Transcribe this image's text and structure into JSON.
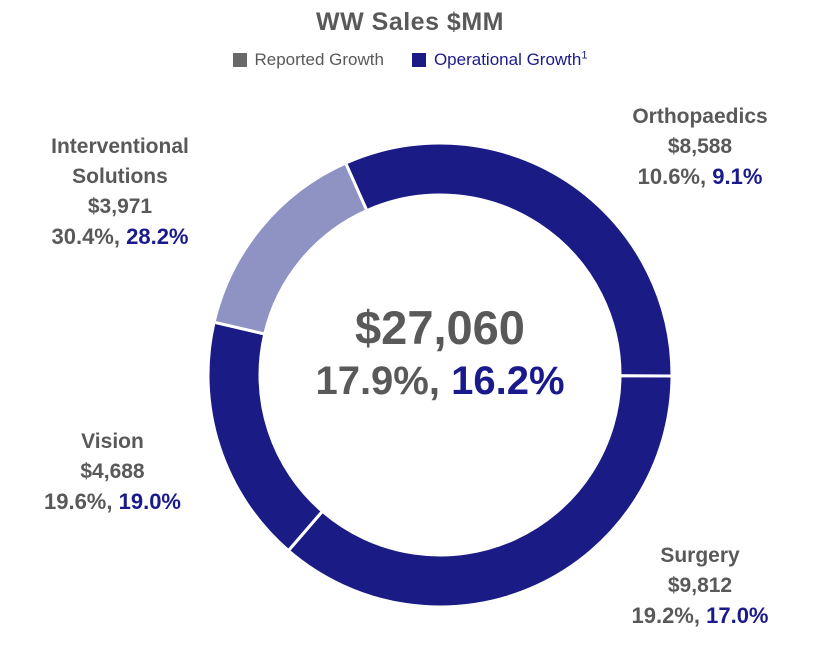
{
  "title": "WW Sales $MM",
  "legend": {
    "items": [
      {
        "label": "Reported Growth",
        "color": "#696969"
      },
      {
        "label": "Operational Growth",
        "sup": "1",
        "color": "#1b1b85"
      }
    ]
  },
  "chart_data": {
    "type": "pie",
    "subtype": "donut",
    "title": "WW Sales $MM",
    "units": "$MM",
    "legend_entries": [
      "Reported Growth",
      "Operational Growth"
    ],
    "center": {
      "total": "$27,060",
      "reported": "17.9%,",
      "operational": "16.2%",
      "reported_pct": 17.9,
      "operational_pct": 16.2
    },
    "segments": [
      {
        "name": "Orthopaedics",
        "value": 8588,
        "value_label": "$8,588",
        "reported": "10.6%,",
        "operational": "9.1%",
        "reported_pct": 10.6,
        "operational_pct": 9.1,
        "color": "#1b1b85"
      },
      {
        "name": "Surgery",
        "value": 9812,
        "value_label": "$9,812",
        "reported": "19.2%,",
        "operational": "17.0%",
        "reported_pct": 19.2,
        "operational_pct": 17.0,
        "color": "#1b1b85"
      },
      {
        "name": "Vision",
        "value": 4688,
        "value_label": "$4,688",
        "reported": "19.6%,",
        "operational": "19.0%",
        "reported_pct": 19.6,
        "operational_pct": 19.0,
        "color": "#1b1b85"
      },
      {
        "name": "Interventional Solutions",
        "value": 3971,
        "value_label": "$3,971",
        "reported": "30.4%,",
        "operational": "28.2%",
        "reported_pct": 30.4,
        "operational_pct": 28.2,
        "color": "#8f93c3"
      }
    ],
    "layout": {
      "start_angle_deg": -24,
      "clockwise": true,
      "donut_hole_ratio": 0.776,
      "divider_color": "#ffffff",
      "legend_position": "top"
    }
  }
}
